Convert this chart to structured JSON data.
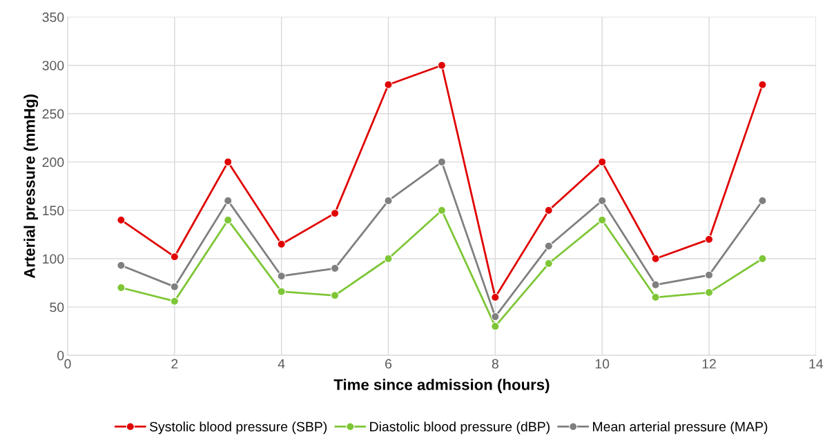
{
  "chart_data": {
    "type": "line",
    "xlabel": "Time since admission (hours)",
    "ylabel": "Arterial pressure (mmHg)",
    "x": [
      1,
      2,
      3,
      4,
      5,
      6,
      7,
      8,
      9,
      10,
      11,
      12,
      13
    ],
    "series": [
      {
        "name": "Systolic blood pressure (SBP)",
        "color": "#e00000",
        "values": [
          140,
          102,
          200,
          115,
          147,
          280,
          300,
          60,
          150,
          200,
          100,
          120,
          280
        ]
      },
      {
        "name": "Diastolic blood pressure (dBP)",
        "color": "#7ec636",
        "values": [
          70,
          56,
          140,
          66,
          62,
          100,
          150,
          30,
          95,
          140,
          60,
          65,
          100
        ]
      },
      {
        "name": "Mean arterial pressure (MAP)",
        "color": "#7f7f7f",
        "values": [
          93,
          71,
          160,
          82,
          90,
          160,
          200,
          40,
          113,
          160,
          73,
          83,
          160
        ]
      }
    ],
    "xlim": [
      0,
      14
    ],
    "xticks": [
      0,
      2,
      4,
      6,
      8,
      10,
      12,
      14
    ],
    "ylim": [
      0,
      350
    ],
    "yticks": [
      0,
      50,
      100,
      150,
      200,
      250,
      300,
      350
    ],
    "grid": true,
    "legend": "bottom",
    "marker": "circle",
    "line_style": "solid"
  }
}
